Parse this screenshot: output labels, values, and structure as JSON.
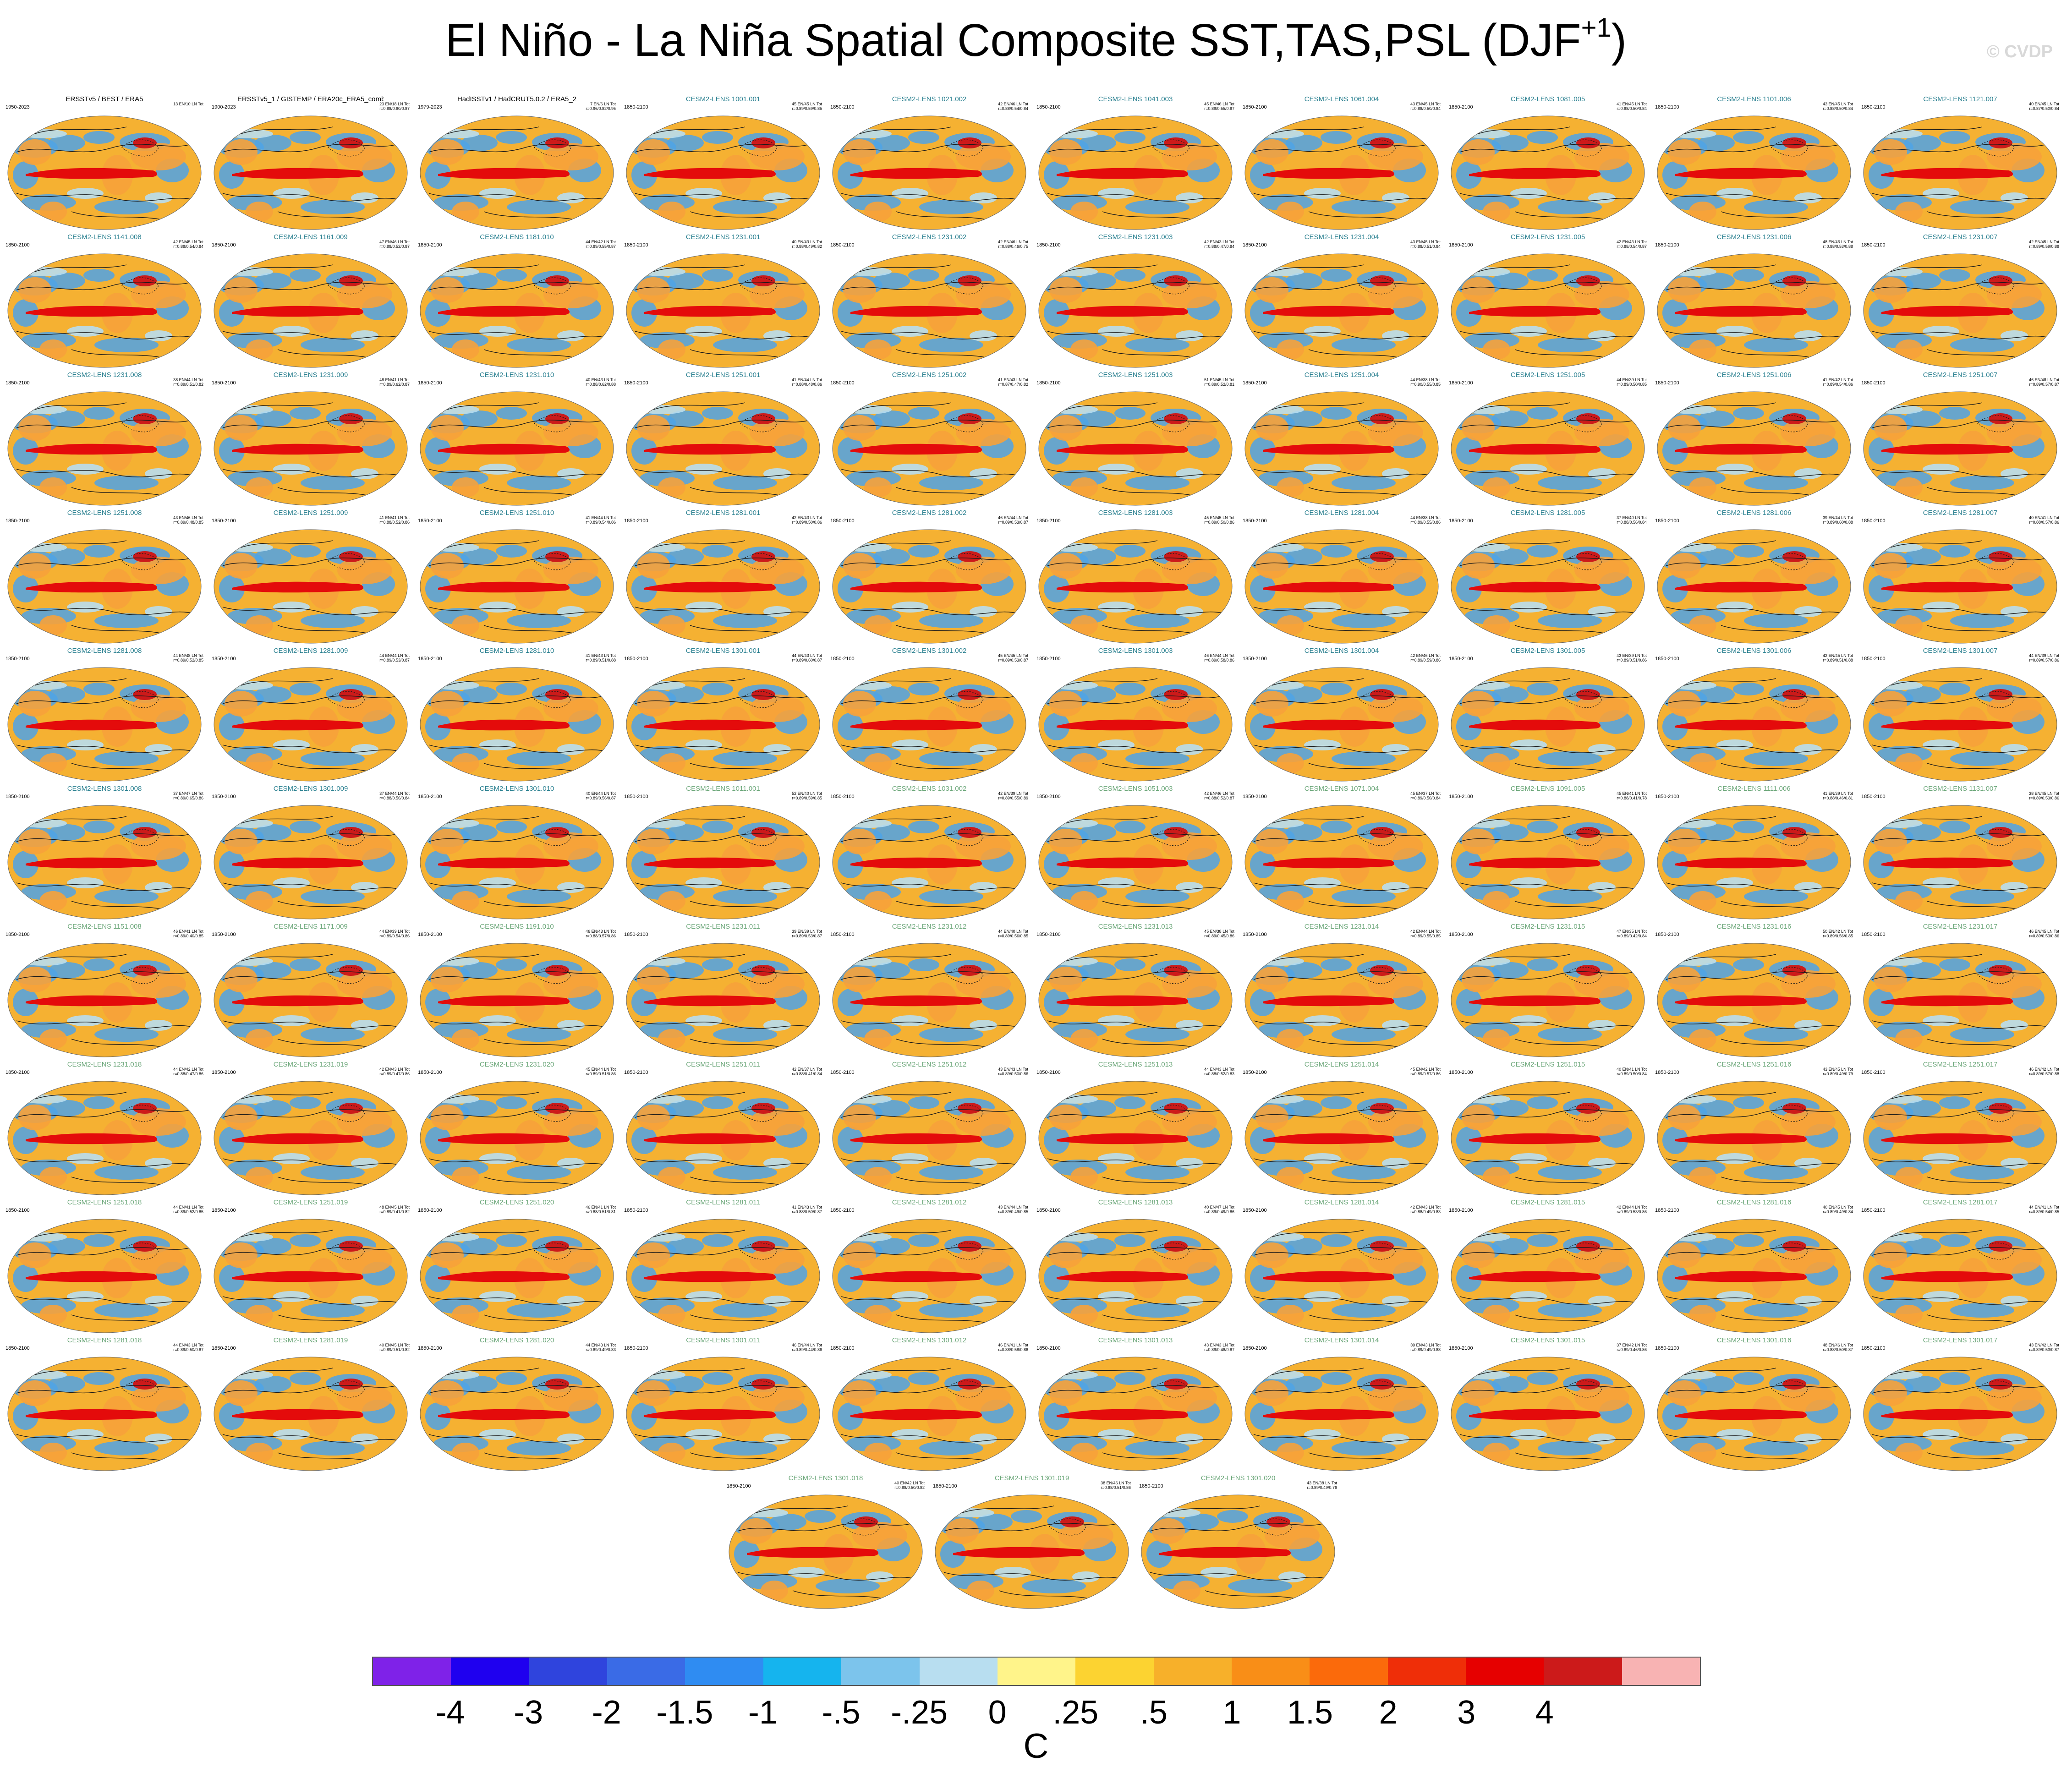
{
  "title": {
    "main": "El Niño - La Niña Spatial Composite SST,TAS,PSL (DJF",
    "sup": "+1",
    "close": ")"
  },
  "watermark": "© CVDP",
  "colors": {
    "ocean_base": "#f5b132",
    "land_base": "#f7a23a",
    "enso_tongue": "#e40b0b",
    "cold_patch": "#4fa3e6",
    "contour": "#1a1a1a",
    "model_title": "#2a8090",
    "model_title_light": "#6aa678"
  },
  "panels": [
    {
      "title": "ERSSTv5 / BEST / ERA5",
      "period": "1950-2023",
      "stats": "13 EN/10 LN Tot",
      "kind": "obs"
    },
    {
      "title": "ERSSTv5_1 / GISTEMP / ERA20c_ERA5_comb",
      "period": "1900-2023",
      "stats": "23 EN/18 LN Tot\nr=0.88/0.80/0.87",
      "kind": "obs"
    },
    {
      "title": "HadISSTv1 / HadCRUT5.0.2 / ERA5_2",
      "period": "1979-2023",
      "stats": "7 EN/6 LN Tot\nr=0.96/0.82/0.95",
      "kind": "obs"
    },
    {
      "title": "CESM2-LENS 1001.001",
      "period": "1850-2100",
      "stats": "45 EN/45 LN Tot\nr=0.89/0.59/0.85"
    },
    {
      "title": "CESM2-LENS 1021.002",
      "period": "1850-2100",
      "stats": "42 EN/46 LN Tot\nr=0.88/0.54/0.84"
    },
    {
      "title": "CESM2-LENS 1041.003",
      "period": "1850-2100",
      "stats": "45 EN/46 LN Tot\nr=0.89/0.55/0.87"
    },
    {
      "title": "CESM2-LENS 1061.004",
      "period": "1850-2100",
      "stats": "43 EN/45 LN Tot\nr=0.88/0.50/0.84"
    },
    {
      "title": "CESM2-LENS 1081.005",
      "period": "1850-2100",
      "stats": "41 EN/45 LN Tot\nr=0.88/0.50/0.84"
    },
    {
      "title": "CESM2-LENS 1101.006",
      "period": "1850-2100",
      "stats": "43 EN/45 LN Tot\nr=0.88/0.50/0.84"
    },
    {
      "title": "CESM2-LENS 1121.007",
      "period": "1850-2100",
      "stats": "40 EN/45 LN Tot\nr=0.87/0.50/0.84"
    },
    {
      "title": "CESM2-LENS 1141.008",
      "period": "1850-2100",
      "stats": "42 EN/45 LN Tot\nr=0.88/0.54/0.84"
    },
    {
      "title": "CESM2-LENS 1161.009",
      "period": "1850-2100",
      "stats": "47 EN/46 LN Tot\nr=0.88/0.52/0.87"
    },
    {
      "title": "CESM2-LENS 1181.010",
      "period": "1850-2100",
      "stats": "44 EN/42 LN Tot\nr=0.89/0.55/0.87"
    },
    {
      "title": "CESM2-LENS 1231.001",
      "period": "1850-2100",
      "stats": "40 EN/43 LN Tot\nr=0.88/0.49/0.82"
    },
    {
      "title": "CESM2-LENS 1231.002",
      "period": "1850-2100",
      "stats": "42 EN/46 LN Tot\nr=0.88/0.46/0.75"
    },
    {
      "title": "CESM2-LENS 1231.003",
      "period": "1850-2100",
      "stats": "42 EN/43 LN Tot\nr=0.88/0.47/0.84"
    },
    {
      "title": "CESM2-LENS 1231.004",
      "period": "1850-2100",
      "stats": "43 EN/45 LN Tot\nr=0.88/0.51/0.84"
    },
    {
      "title": "CESM2-LENS 1231.005",
      "period": "1850-2100",
      "stats": "42 EN/43 LN Tot\nr=0.88/0.54/0.87"
    },
    {
      "title": "CESM2-LENS 1231.006",
      "period": "1850-2100",
      "stats": "48 EN/46 LN Tot\nr=0.88/0.53/0.88"
    },
    {
      "title": "CESM2-LENS 1231.007",
      "period": "1850-2100",
      "stats": "42 EN/45 LN Tot\nr=0.89/0.59/0.88"
    },
    {
      "title": "CESM2-LENS 1231.008",
      "period": "1850-2100",
      "stats": "38 EN/44 LN Tot\nr=0.89/0.51/0.82"
    },
    {
      "title": "CESM2-LENS 1231.009",
      "period": "1850-2100",
      "stats": "48 EN/41 LN Tot\nr=0.89/0.62/0.87"
    },
    {
      "title": "CESM2-LENS 1231.010",
      "period": "1850-2100",
      "stats": "40 EN/43 LN Tot\nr=0.88/0.62/0.88"
    },
    {
      "title": "CESM2-LENS 1251.001",
      "period": "1850-2100",
      "stats": "41 EN/44 LN Tot\nr=0.88/0.48/0.86"
    },
    {
      "title": "CESM2-LENS 1251.002",
      "period": "1850-2100",
      "stats": "41 EN/43 LN Tot\nr=0.87/0.47/0.82"
    },
    {
      "title": "CESM2-LENS 1251.003",
      "period": "1850-2100",
      "stats": "51 EN/45 LN Tot\nr=0.89/0.52/0.81"
    },
    {
      "title": "CESM2-LENS 1251.004",
      "period": "1850-2100",
      "stats": "44 EN/38 LN Tot\nr=0.90/0.55/0.85"
    },
    {
      "title": "CESM2-LENS 1251.005",
      "period": "1850-2100",
      "stats": "44 EN/39 LN Tot\nr=0.89/0.50/0.85"
    },
    {
      "title": "CESM2-LENS 1251.006",
      "period": "1850-2100",
      "stats": "41 EN/42 LN Tot\nr=0.89/0.54/0.86"
    },
    {
      "title": "CESM2-LENS 1251.007",
      "period": "1850-2100",
      "stats": "46 EN/48 LN Tot\nr=0.89/0.57/0.87"
    },
    {
      "title": "CESM2-LENS 1251.008",
      "period": "1850-2100",
      "stats": "43 EN/46 LN Tot\nr=0.89/0.48/0.85"
    },
    {
      "title": "CESM2-LENS 1251.009",
      "period": "1850-2100",
      "stats": "41 EN/41 LN Tot\nr=0.88/0.52/0.86"
    },
    {
      "title": "CESM2-LENS 1251.010",
      "period": "1850-2100",
      "stats": "41 EN/44 LN Tot\nr=0.89/0.54/0.86"
    },
    {
      "title": "CESM2-LENS 1281.001",
      "period": "1850-2100",
      "stats": "42 EN/43 LN Tot\nr=0.89/0.50/0.86"
    },
    {
      "title": "CESM2-LENS 1281.002",
      "period": "1850-2100",
      "stats": "46 EN/44 LN Tot\nr=0.89/0.53/0.87"
    },
    {
      "title": "CESM2-LENS 1281.003",
      "period": "1850-2100",
      "stats": "45 EN/45 LN Tot\nr=0.89/0.50/0.86"
    },
    {
      "title": "CESM2-LENS 1281.004",
      "period": "1850-2100",
      "stats": "44 EN/38 LN Tot\nr=0.89/0.55/0.86"
    },
    {
      "title": "CESM2-LENS 1281.005",
      "period": "1850-2100",
      "stats": "37 EN/40 LN Tot\nr=0.88/0.56/0.84"
    },
    {
      "title": "CESM2-LENS 1281.006",
      "period": "1850-2100",
      "stats": "39 EN/44 LN Tot\nr=0.89/0.60/0.88"
    },
    {
      "title": "CESM2-LENS 1281.007",
      "period": "1850-2100",
      "stats": "40 EN/41 LN Tot\nr=0.88/0.57/0.86"
    },
    {
      "title": "CESM2-LENS 1281.008",
      "period": "1850-2100",
      "stats": "44 EN/48 LN Tot\nr=0.89/0.52/0.85"
    },
    {
      "title": "CESM2-LENS 1281.009",
      "period": "1850-2100",
      "stats": "44 EN/44 LN Tot\nr=0.89/0.53/0.87"
    },
    {
      "title": "CESM2-LENS 1281.010",
      "period": "1850-2100",
      "stats": "41 EN/43 LN Tot\nr=0.89/0.51/0.88"
    },
    {
      "title": "CESM2-LENS 1301.001",
      "period": "1850-2100",
      "stats": "44 EN/43 LN Tot\nr=0.89/0.60/0.87"
    },
    {
      "title": "CESM2-LENS 1301.002",
      "period": "1850-2100",
      "stats": "45 EN/45 LN Tot\nr=0.89/0.53/0.87"
    },
    {
      "title": "CESM2-LENS 1301.003",
      "period": "1850-2100",
      "stats": "46 EN/44 LN Tot\nr=0.89/0.58/0.86"
    },
    {
      "title": "CESM2-LENS 1301.004",
      "period": "1850-2100",
      "stats": "42 EN/46 LN Tot\nr=0.89/0.59/0.86"
    },
    {
      "title": "CESM2-LENS 1301.005",
      "period": "1850-2100",
      "stats": "43 EN/39 LN Tot\nr=0.89/0.51/0.86"
    },
    {
      "title": "CESM2-LENS 1301.006",
      "period": "1850-2100",
      "stats": "42 EN/45 LN Tot\nr=0.89/0.51/0.88"
    },
    {
      "title": "CESM2-LENS 1301.007",
      "period": "1850-2100",
      "stats": "44 EN/39 LN Tot\nr=0.89/0.57/0.86"
    },
    {
      "title": "CESM2-LENS 1301.008",
      "period": "1850-2100",
      "stats": "37 EN/47 LN Tot\nr=0.89/0.65/0.86"
    },
    {
      "title": "CESM2-LENS 1301.009",
      "period": "1850-2100",
      "stats": "37 EN/44 LN Tot\nr=0.88/0.56/0.84"
    },
    {
      "title": "CESM2-LENS 1301.010",
      "period": "1850-2100",
      "stats": "40 EN/44 LN Tot\nr=0.89/0.56/0.87"
    },
    {
      "title": "CESM2-LENS 1011.001",
      "period": "1850-2100",
      "stats": "52 EN/40 LN Tot\nr=0.89/0.59/0.85",
      "kind": "light"
    },
    {
      "title": "CESM2-LENS 1031.002",
      "period": "1850-2100",
      "stats": "42 EN/39 LN Tot\nr=0.89/0.55/0.89",
      "kind": "light"
    },
    {
      "title": "CESM2-LENS 1051.003",
      "period": "1850-2100",
      "stats": "42 EN/46 LN Tot\nr=0.88/0.52/0.87",
      "kind": "light"
    },
    {
      "title": "CESM2-LENS 1071.004",
      "period": "1850-2100",
      "stats": "45 EN/37 LN Tot\nr=0.89/0.50/0.84",
      "kind": "light"
    },
    {
      "title": "CESM2-LENS 1091.005",
      "period": "1850-2100",
      "stats": "45 EN/41 LN Tot\nr=0.88/0.41/0.78",
      "kind": "light"
    },
    {
      "title": "CESM2-LENS 1111.006",
      "period": "1850-2100",
      "stats": "41 EN/39 LN Tot\nr=0.88/0.46/0.81",
      "kind": "light"
    },
    {
      "title": "CESM2-LENS 1131.007",
      "period": "1850-2100",
      "stats": "38 EN/45 LN Tot\nr=0.89/0.53/0.86",
      "kind": "light"
    },
    {
      "title": "CESM2-LENS 1151.008",
      "period": "1850-2100",
      "stats": "46 EN/41 LN Tot\nr=0.89/0.40/0.85",
      "kind": "light"
    },
    {
      "title": "CESM2-LENS 1171.009",
      "period": "1850-2100",
      "stats": "44 EN/39 LN Tot\nr=0.89/0.54/0.86",
      "kind": "light"
    },
    {
      "title": "CESM2-LENS 1191.010",
      "period": "1850-2100",
      "stats": "46 EN/43 LN Tot\nr=0.88/0.57/0.86",
      "kind": "light"
    },
    {
      "title": "CESM2-LENS 1231.011",
      "period": "1850-2100",
      "stats": "39 EN/39 LN Tot\nr=0.89/0.53/0.87",
      "kind": "light"
    },
    {
      "title": "CESM2-LENS 1231.012",
      "period": "1850-2100",
      "stats": "44 EN/40 LN Tot\nr=0.89/0.56/0.85",
      "kind": "light"
    },
    {
      "title": "CESM2-LENS 1231.013",
      "period": "1850-2100",
      "stats": "45 EN/38 LN Tot\nr=0.89/0.45/0.86",
      "kind": "light"
    },
    {
      "title": "CESM2-LENS 1231.014",
      "period": "1850-2100",
      "stats": "42 EN/44 LN Tot\nr=0.89/0.55/0.85",
      "kind": "light"
    },
    {
      "title": "CESM2-LENS 1231.015",
      "period": "1850-2100",
      "stats": "47 EN/35 LN Tot\nr=0.89/0.42/0.84",
      "kind": "light"
    },
    {
      "title": "CESM2-LENS 1231.016",
      "period": "1850-2100",
      "stats": "50 EN/42 LN Tot\nr=0.89/0.56/0.85",
      "kind": "light"
    },
    {
      "title": "CESM2-LENS 1231.017",
      "period": "1850-2100",
      "stats": "46 EN/45 LN Tot\nr=0.89/0.53/0.86",
      "kind": "light"
    },
    {
      "title": "CESM2-LENS 1231.018",
      "period": "1850-2100",
      "stats": "44 EN/42 LN Tot\nr=0.88/0.47/0.86",
      "kind": "light"
    },
    {
      "title": "CESM2-LENS 1231.019",
      "period": "1850-2100",
      "stats": "42 EN/43 LN Tot\nr=0.89/0.47/0.86",
      "kind": "light"
    },
    {
      "title": "CESM2-LENS 1231.020",
      "period": "1850-2100",
      "stats": "45 EN/44 LN Tot\nr=0.89/0.51/0.86",
      "kind": "light"
    },
    {
      "title": "CESM2-LENS 1251.011",
      "period": "1850-2100",
      "stats": "42 EN/37 LN Tot\nr=0.88/0.41/0.84",
      "kind": "light"
    },
    {
      "title": "CESM2-LENS 1251.012",
      "period": "1850-2100",
      "stats": "43 EN/43 LN Tot\nr=0.89/0.50/0.86",
      "kind": "light"
    },
    {
      "title": "CESM2-LENS 1251.013",
      "period": "1850-2100",
      "stats": "44 EN/43 LN Tot\nr=0.88/0.52/0.83",
      "kind": "light"
    },
    {
      "title": "CESM2-LENS 1251.014",
      "period": "1850-2100",
      "stats": "45 EN/42 LN Tot\nr=0.89/0.57/0.86",
      "kind": "light"
    },
    {
      "title": "CESM2-LENS 1251.015",
      "period": "1850-2100",
      "stats": "40 EN/41 LN Tot\nr=0.89/0.50/0.84",
      "kind": "light"
    },
    {
      "title": "CESM2-LENS 1251.016",
      "period": "1850-2100",
      "stats": "43 EN/45 LN Tot\nr=0.89/0.49/0.79",
      "kind": "light"
    },
    {
      "title": "CESM2-LENS 1251.017",
      "period": "1850-2100",
      "stats": "46 EN/42 LN Tot\nr=0.89/0.57/0.88",
      "kind": "light"
    },
    {
      "title": "CESM2-LENS 1251.018",
      "period": "1850-2100",
      "stats": "44 EN/41 LN Tot\nr=0.89/0.52/0.85",
      "kind": "light"
    },
    {
      "title": "CESM2-LENS 1251.019",
      "period": "1850-2100",
      "stats": "48 EN/45 LN Tot\nr=0.89/0.41/0.82",
      "kind": "light"
    },
    {
      "title": "CESM2-LENS 1251.020",
      "period": "1850-2100",
      "stats": "46 EN/41 LN Tot\nr=0.88/0.51/0.81",
      "kind": "light"
    },
    {
      "title": "CESM2-LENS 1281.011",
      "period": "1850-2100",
      "stats": "41 EN/43 LN Tot\nr=0.88/0.50/0.87",
      "kind": "light"
    },
    {
      "title": "CESM2-LENS 1281.012",
      "period": "1850-2100",
      "stats": "43 EN/44 LN Tot\nr=0.89/0.49/0.85",
      "kind": "light"
    },
    {
      "title": "CESM2-LENS 1281.013",
      "period": "1850-2100",
      "stats": "40 EN/47 LN Tot\nr=0.89/0.49/0.86",
      "kind": "light"
    },
    {
      "title": "CESM2-LENS 1281.014",
      "period": "1850-2100",
      "stats": "42 EN/43 LN Tot\nr=0.88/0.49/0.83",
      "kind": "light"
    },
    {
      "title": "CESM2-LENS 1281.015",
      "period": "1850-2100",
      "stats": "42 EN/44 LN Tot\nr=0.89/0.53/0.86",
      "kind": "light"
    },
    {
      "title": "CESM2-LENS 1281.016",
      "period": "1850-2100",
      "stats": "40 EN/45 LN Tot\nr=0.89/0.49/0.84",
      "kind": "light"
    },
    {
      "title": "CESM2-LENS 1281.017",
      "period": "1850-2100",
      "stats": "44 EN/41 LN Tot\nr=0.89/0.54/0.85",
      "kind": "light"
    },
    {
      "title": "CESM2-LENS 1281.018",
      "period": "1850-2100",
      "stats": "44 EN/43 LN Tot\nr=0.89/0.50/0.87",
      "kind": "light"
    },
    {
      "title": "CESM2-LENS 1281.019",
      "period": "1850-2100",
      "stats": "40 EN/45 LN Tot\nr=0.89/0.51/0.82",
      "kind": "light"
    },
    {
      "title": "CESM2-LENS 1281.020",
      "period": "1850-2100",
      "stats": "44 EN/43 LN Tot\nr=0.89/0.49/0.83",
      "kind": "light"
    },
    {
      "title": "CESM2-LENS 1301.011",
      "period": "1850-2100",
      "stats": "46 EN/44 LN Tot\nr=0.89/0.44/0.86",
      "kind": "light"
    },
    {
      "title": "CESM2-LENS 1301.012",
      "period": "1850-2100",
      "stats": "46 EN/41 LN Tot\nr=0.88/0.58/0.86",
      "kind": "light"
    },
    {
      "title": "CESM2-LENS 1301.013",
      "period": "1850-2100",
      "stats": "43 EN/43 LN Tot\nr=0.89/0.48/0.87",
      "kind": "light"
    },
    {
      "title": "CESM2-LENS 1301.014",
      "period": "1850-2100",
      "stats": "39 EN/43 LN Tot\nr=0.89/0.49/0.88",
      "kind": "light"
    },
    {
      "title": "CESM2-LENS 1301.015",
      "period": "1850-2100",
      "stats": "37 EN/42 LN Tot\nr=0.89/0.46/0.86",
      "kind": "light"
    },
    {
      "title": "CESM2-LENS 1301.016",
      "period": "1850-2100",
      "stats": "48 EN/46 LN Tot\nr=0.88/0.50/0.87",
      "kind": "light"
    },
    {
      "title": "CESM2-LENS 1301.017",
      "period": "1850-2100",
      "stats": "43 EN/42 LN Tot\nr=0.89/0.53/0.87",
      "kind": "light"
    },
    {
      "title": "CESM2-LENS 1301.018",
      "period": "1850-2100",
      "stats": "40 EN/42 LN Tot\nr=0.88/0.50/0.82",
      "kind": "light"
    },
    {
      "title": "CESM2-LENS 1301.019",
      "period": "1850-2100",
      "stats": "38 EN/46 LN Tot\nr=0.88/0.51/0.86",
      "kind": "light"
    },
    {
      "title": "CESM2-LENS 1301.020",
      "period": "1850-2100",
      "stats": "43 EN/38 LN Tot\nr=0.89/0.49/0.76",
      "kind": "light"
    }
  ],
  "colorbar": {
    "colors": [
      "#7f22e8",
      "#1f00ef",
      "#2f44dd",
      "#3a6be6",
      "#2f8cf2",
      "#15b4ee",
      "#7cc4ec",
      "#b8def0",
      "#fff48a",
      "#fcd331",
      "#f7b02a",
      "#f98e17",
      "#fb6a0b",
      "#ef2e08",
      "#e60000",
      "#cc1a1a",
      "#f8b3b3"
    ],
    "labels": [
      "-4",
      "-3",
      "-2",
      "-1.5",
      "-1",
      "-.5",
      "-.25",
      "0",
      ".25",
      ".5",
      "1",
      "1.5",
      "2",
      "3",
      "4"
    ],
    "unit": "C"
  }
}
